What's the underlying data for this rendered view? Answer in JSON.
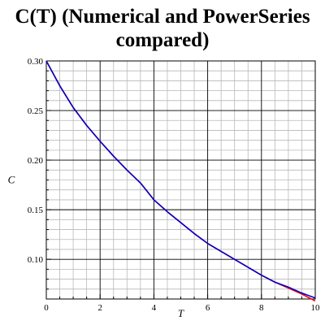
{
  "chart_data": {
    "type": "line",
    "title_lines": [
      "C(T) (Numerical and PowerSeries",
      "compared)"
    ],
    "xlabel": "T",
    "ylabel": "C",
    "xlim": [
      0,
      10
    ],
    "ylim": [
      0.06,
      0.3
    ],
    "x_ticks": [
      "0",
      "2",
      "4",
      "6",
      "8",
      "10"
    ],
    "y_ticks": [
      "0.30",
      "0.25",
      "0.20",
      "0.15",
      "0.10"
    ],
    "grid": true,
    "x": [
      0,
      0.5,
      1,
      1.5,
      2,
      2.5,
      3,
      3.5,
      4,
      4.5,
      5,
      5.5,
      6,
      6.5,
      7,
      7.5,
      8,
      8.5,
      9,
      9.5,
      10
    ],
    "series": [
      {
        "color": "#ff0000",
        "values": [
          0.3,
          0.275,
          0.253,
          0.235,
          0.219,
          0.204,
          0.19,
          0.177,
          0.16,
          0.148,
          0.137,
          0.126,
          0.116,
          0.108,
          0.1,
          0.092,
          0.084,
          0.077,
          0.071,
          0.065,
          0.058
        ]
      },
      {
        "color": "#0000cc",
        "values": [
          0.3,
          0.275,
          0.253,
          0.235,
          0.219,
          0.204,
          0.19,
          0.177,
          0.16,
          0.148,
          0.137,
          0.126,
          0.116,
          0.108,
          0.1,
          0.092,
          0.084,
          0.077,
          0.072,
          0.066,
          0.061
        ]
      }
    ]
  }
}
